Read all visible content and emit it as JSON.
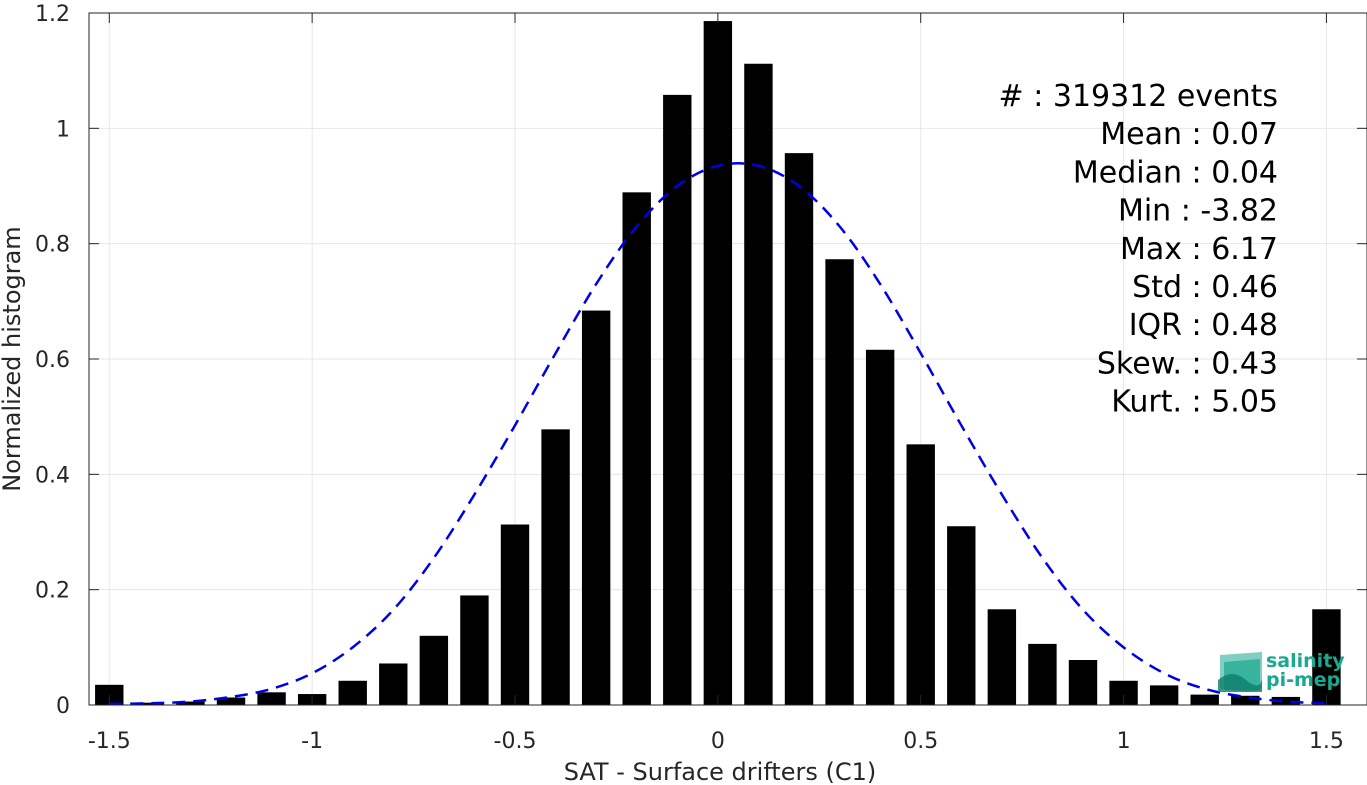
{
  "chart_data": {
    "type": "bar",
    "xlabel": "SAT - Surface drifters (C1)",
    "ylabel": "Normalized histogram",
    "xlim": [
      -1.55,
      1.6
    ],
    "ylim": [
      0,
      1.2
    ],
    "xticks": [
      -1.5,
      -1,
      -0.5,
      0,
      0.5,
      1,
      1.5
    ],
    "xtick_labels": [
      "-1.5",
      "-1",
      "-0.5",
      "0",
      "0.5",
      "1",
      "1.5"
    ],
    "yticks": [
      0,
      0.2,
      0.4,
      0.6,
      0.8,
      1,
      1.2
    ],
    "ytick_labels": [
      "0",
      "0.2",
      "0.4",
      "0.6",
      "0.8",
      "1",
      "1.2"
    ],
    "grid": true,
    "bar_width": 0.07,
    "bars": {
      "x": [
        -1.5,
        -1.4,
        -1.3,
        -1.2,
        -1.1,
        -1.0,
        -0.9,
        -0.8,
        -0.7,
        -0.6,
        -0.5,
        -0.4,
        -0.3,
        -0.2,
        -0.1,
        0.0,
        0.1,
        0.2,
        0.3,
        0.4,
        0.5,
        0.6,
        0.7,
        0.8,
        0.9,
        1.0,
        1.1,
        1.2,
        1.3,
        1.4,
        1.5
      ],
      "values": [
        0.035,
        0.004,
        0.006,
        0.013,
        0.022,
        0.019,
        0.042,
        0.072,
        0.12,
        0.19,
        0.313,
        0.478,
        0.684,
        0.889,
        1.058,
        1.186,
        1.112,
        0.957,
        0.773,
        0.616,
        0.452,
        0.31,
        0.166,
        0.106,
        0.078,
        0.042,
        0.034,
        0.018,
        0.016,
        0.014,
        0.166
      ],
      "color": "#000000"
    },
    "fit_curve": {
      "style": "dashed",
      "color": "#0000e6",
      "x": [
        -1.5,
        -1.4,
        -1.3,
        -1.2,
        -1.1,
        -1.0,
        -0.9,
        -0.8,
        -0.7,
        -0.6,
        -0.5,
        -0.4,
        -0.3,
        -0.2,
        -0.1,
        0.0,
        0.1,
        0.2,
        0.3,
        0.4,
        0.5,
        0.6,
        0.7,
        0.8,
        0.9,
        1.0,
        1.1,
        1.2,
        1.3,
        1.4,
        1.5
      ],
      "y": [
        0.002,
        0.003,
        0.006,
        0.014,
        0.028,
        0.055,
        0.1,
        0.165,
        0.255,
        0.365,
        0.485,
        0.61,
        0.73,
        0.83,
        0.9,
        0.935,
        0.935,
        0.9,
        0.83,
        0.73,
        0.61,
        0.485,
        0.365,
        0.255,
        0.165,
        0.1,
        0.055,
        0.028,
        0.014,
        0.006,
        0.003
      ]
    }
  },
  "stats": [
    {
      "key": "#  ",
      "value": ": 319312 events"
    },
    {
      "key": "Mean ",
      "value": ": 0.07"
    },
    {
      "key": "Median ",
      "value": ": 0.04"
    },
    {
      "key": "Min ",
      "value": ": -3.82"
    },
    {
      "key": "Max ",
      "value": ": 6.17"
    },
    {
      "key": "Std ",
      "value": ": 0.46"
    },
    {
      "key": "IQR ",
      "value": ": 0.48"
    },
    {
      "key": "Skew. ",
      "value": ": 0.43"
    },
    {
      "key": "Kurt. ",
      "value": ": 5.05"
    }
  ],
  "logo": {
    "line1": "salinity",
    "line2": "pi-mep",
    "color": "#1aa88f"
  }
}
